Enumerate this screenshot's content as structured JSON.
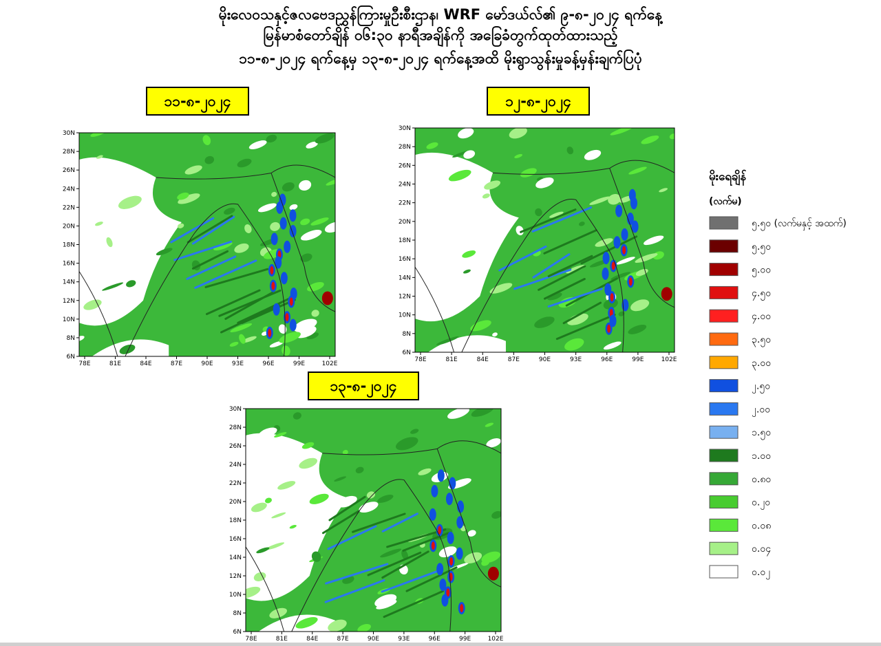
{
  "header": {
    "lines": [
      "မိုးလေဝသနှင့်ဇလဗေဒညွှန်ကြားမှုဦးစီးဌာန၊ WRF မော်ဒယ်လ်၏ ၉-၈-၂၀၂၄ ရက်နေ့",
      "မြန်မာစံတော်ချိန် ၀၆:၃၀ နာရီအချိန်ကို အခြေခံတွက်ထုတ်ထားသည့်",
      "၁၁-၈-၂၀၂၄ ရက်နေ့မှ ၁၃-၈-၂၀၂၄ ရက်နေ့အထိ မိုးရွာသွန်းမှုခန့်မှန်းချက်ပြပုံ"
    ]
  },
  "maps": [
    {
      "date": "၁၁-၈-၂၀၂၄"
    },
    {
      "date": "၁၂-၈-၂၀၂၄"
    },
    {
      "date": "၁၃-၈-၂၀၂၄"
    }
  ],
  "axis": {
    "lat_labels": [
      "6N",
      "8N",
      "10N",
      "12N",
      "14N",
      "16N",
      "18N",
      "20N",
      "22N",
      "24N",
      "26N",
      "28N",
      "30N"
    ],
    "lon_labels": [
      "78E",
      "81E",
      "84E",
      "87E",
      "90E",
      "93E",
      "96E",
      "99E",
      "102E"
    ]
  },
  "legend": {
    "title": "မိုးရေချိန်",
    "unit": "(လက်မ)",
    "items": [
      {
        "label": "၅.၅၀ (လက်မနှင့် အထက်)",
        "color": "#707070"
      },
      {
        "label": "၅.၅၀",
        "color": "#6b0000"
      },
      {
        "label": "၅.၀၀",
        "color": "#a00000"
      },
      {
        "label": "၄.၅၀",
        "color": "#e01010"
      },
      {
        "label": "၄.၀၀",
        "color": "#ff2020"
      },
      {
        "label": "၃.၅၀",
        "color": "#ff6a10"
      },
      {
        "label": "၃.၀၀",
        "color": "#ffa800"
      },
      {
        "label": "၂.၅၀",
        "color": "#1050e0"
      },
      {
        "label": "၂.၀၀",
        "color": "#2a78f0"
      },
      {
        "label": "၁.၅၀",
        "color": "#78b0f0"
      },
      {
        "label": "၁.၀၀",
        "color": "#1e7a1e"
      },
      {
        "label": "၀.၈၀",
        "color": "#36a836"
      },
      {
        "label": "၀.၂၀",
        "color": "#48cc30"
      },
      {
        "label": "၀.၀၈",
        "color": "#5ae83a"
      },
      {
        "label": "၀.၀၄",
        "color": "#a6f088"
      },
      {
        "label": "၀.၀၂",
        "color": "#ffffff"
      }
    ]
  }
}
